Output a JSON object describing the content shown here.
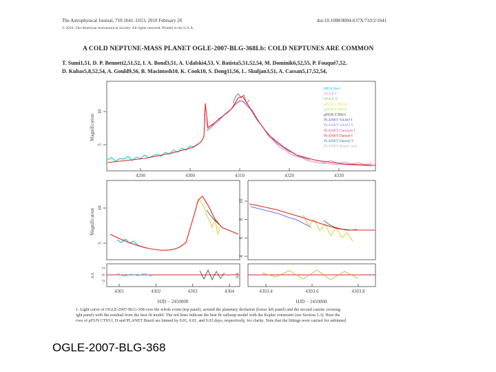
{
  "header": {
    "journal": "The Astrophysical Journal, 710:1641–1653, 2010 February 20",
    "copyright": "© 2010. The American Astronomical Society. All rights reserved. Printed in the U.S.A.",
    "doi": "doi:10.1088/0004-637X/710/2/1641"
  },
  "title": "A COLD NEPTUNE-MASS PLANET OGLE-2007-BLG-368Lb: COLD NEPTUNES ARE COMMON",
  "authors": {
    "line1": "T. Sumi1,51, D. P. Bennett2,51,52, I. A. Bond3,51, A. Udalski4,53, V. Batista5,51,52,54, M. Dominik6,52,55, P. Fouqué7,52,",
    "line2": "D. Kubas5,8,52,54, A. Gould9,56, B. Macintosh10, K. Cook10, S. Dong11,56, L. Skuljan3,51, A. Cassan5,17,52,54,"
  },
  "caption": {
    "line1": "1. Light curve of OGLE-2007-BLG-368 over the whole event (top panel), around the planetary deviation (lower left panel) and the second caustic crossing",
    "line2": "ight panel) with the residual from the best fit model. The red lines indicate the best fit xallarap model with the Kepler constraint (see Section 3.3). Here the",
    "line3": "rves of μFUN CTIO I, H and PLANET Brazil are binned by 0.01, 0.01, and 0.02 days, respectively, for clarity. Note that the fittings were carried for unbinned"
  },
  "figure": {
    "ylabel": "Magnification",
    "residual_label": "ΔA",
    "xlabel_left": "HJD − 2450000",
    "xlabel_right": "HJD − 2450000",
    "top_xticks": [
      "4290",
      "4300",
      "4310",
      "4320",
      "4330"
    ],
    "top_yticks": [
      "5",
      "10"
    ],
    "bl_xticks": [
      "4301",
      "4302",
      "4303",
      "4304"
    ],
    "bl_yticks": [
      "5",
      "10"
    ],
    "br_xticks": [
      "4303.4",
      "4303.6",
      "4303.8"
    ],
    "br_yticks": [
      "4",
      "6",
      "8",
      "10"
    ],
    "res_yticks": [
      "2",
      "0",
      "−2"
    ],
    "legend": [
      {
        "label": "MOA Red",
        "color": "#00c8e0"
      },
      {
        "label": "OGLE I",
        "color": "#e070d0"
      },
      {
        "label": "OGLE V",
        "color": "#60c060"
      },
      {
        "label": "μFUN CTIO H",
        "color": "#e0e040"
      },
      {
        "label": "μFUN CTIO V",
        "color": "#a0e060"
      },
      {
        "label": "μFUN CTIO I",
        "color": "#202020"
      },
      {
        "label": "PLANET SAAO I",
        "color": "#4040e0"
      },
      {
        "label": "PLANET SAAO V",
        "color": "#8080f0"
      },
      {
        "label": "PLANET Canopus I",
        "color": "#e040a0"
      },
      {
        "label": "PLANET Danish I",
        "color": "#e02020"
      },
      {
        "label": "PLANET Danish V",
        "color": "#3070c0"
      },
      {
        "label": "PLANET Brazil clear",
        "color": "#b0b0b0"
      }
    ]
  },
  "bottom_label": "OGLE-2007-BLG-368"
}
